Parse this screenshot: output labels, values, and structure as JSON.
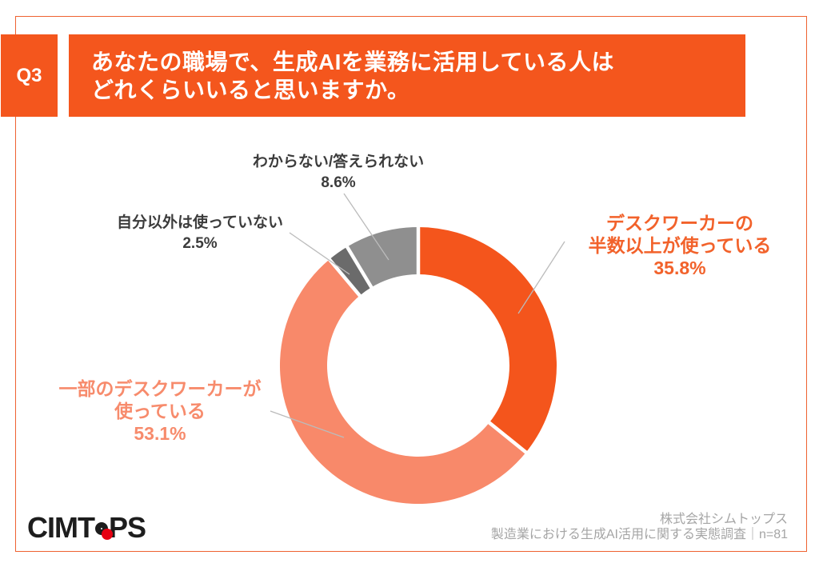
{
  "header": {
    "question_number": "Q3",
    "question_line1": "あなたの職場で、生成AIを業務に活用している人は",
    "question_line2": "どれくらいいると思いますか。"
  },
  "chart_data": {
    "type": "pie",
    "subtype": "donut",
    "title": "あなたの職場で、生成AIを業務に活用している人はどれくらいいると思いますか。",
    "unit": "%",
    "start_angle_deg": 0,
    "direction": "clockwise",
    "legend": "none",
    "labels_outside": true,
    "segments": [
      {
        "label": "デスクワーカーの半数以上が使っている",
        "value": 35.8,
        "color": "#F4551C"
      },
      {
        "label": "一部のデスクワーカーが使っている",
        "value": 53.1,
        "color": "#F8896A"
      },
      {
        "label": "自分以外は使っていない",
        "value": 2.5,
        "color": "#6B6B6B"
      },
      {
        "label": "わからない/答えられない",
        "value": 8.6,
        "color": "#8F8F8F"
      }
    ]
  },
  "callouts": {
    "unknown": {
      "line1": "わからない/答えられない",
      "value": "8.6%"
    },
    "none_other": {
      "line1": "自分以外は使っていない",
      "value": "2.5%"
    },
    "majority": {
      "line1": "デスクワーカーの",
      "line2": "半数以上が使っている",
      "value": "35.8%"
    },
    "partial": {
      "line1": "一部のデスクワーカーが",
      "line2": "使っている",
      "value": "53.1%"
    }
  },
  "footer": {
    "logo_prefix": "CIMT",
    "logo_suffix": "PS",
    "logo_dot_color": "#E60012",
    "source_company": "株式会社シムトップス",
    "source_survey": "製造業における生成AI活用に関する実態調査｜n=81"
  },
  "colors": {
    "accent_orange": "#F4561D",
    "frame_border": "#EE6231",
    "label_dark": "#3C3C3C",
    "callout_orange_text": "#F2622B",
    "callout_salmon_text": "#F78B6C",
    "footer_text": "#A5A5A5",
    "leader_line": "#BBBBBB"
  }
}
